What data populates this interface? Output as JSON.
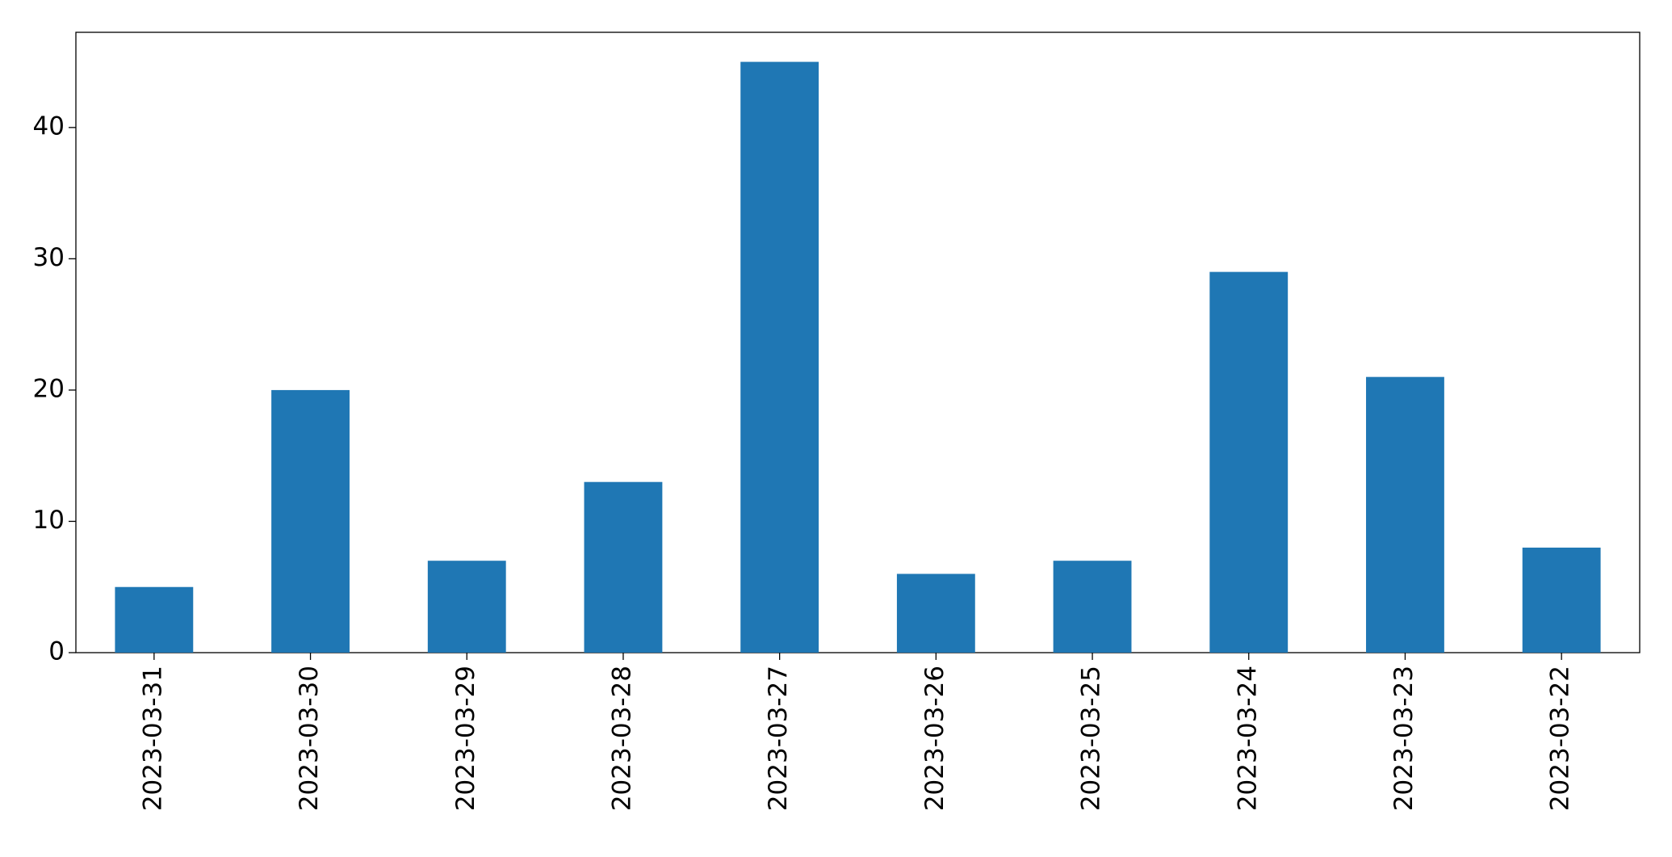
{
  "chart_data": {
    "type": "bar",
    "categories": [
      "2023-03-31",
      "2023-03-30",
      "2023-03-29",
      "2023-03-28",
      "2023-03-27",
      "2023-03-26",
      "2023-03-25",
      "2023-03-24",
      "2023-03-23",
      "2023-03-22"
    ],
    "values": [
      5,
      20,
      7,
      13,
      45,
      6,
      7,
      29,
      21,
      8
    ],
    "color": "#1f77b4",
    "ylim": [
      0,
      47.25
    ],
    "yticks": [
      0,
      10,
      20,
      30,
      40
    ],
    "grid": false
  }
}
